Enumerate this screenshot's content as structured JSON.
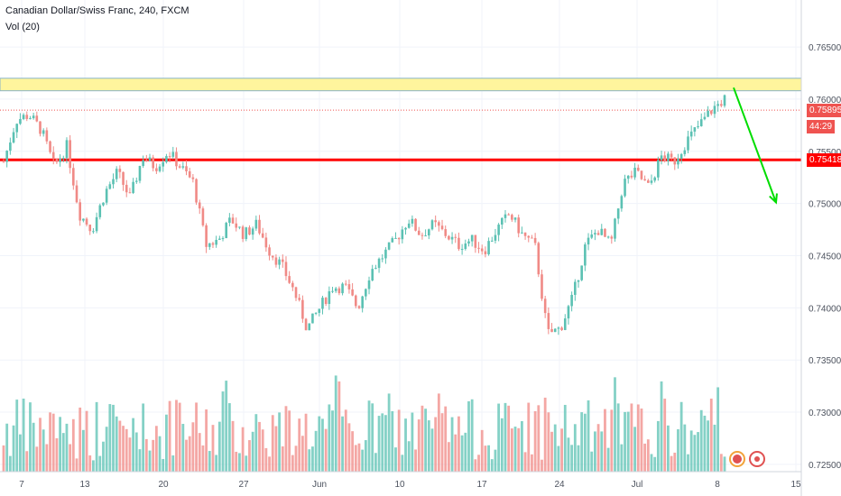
{
  "header": {
    "title": "Canadian Dollar/Swiss Franc, 240, FXCM",
    "indicator": "Vol (20)"
  },
  "badges": {
    "last_price": "0.75895",
    "countdown": "44:29",
    "support_price": "0.75418"
  },
  "colors": {
    "up": "#5bc1b3",
    "down": "#f08a86",
    "support": "#ff0000",
    "zone": "#fff59d",
    "arrow": "#00dd00",
    "last_price": "#ef5350"
  },
  "icons": {
    "toolbar": [
      "alert-icon",
      "replay-icon"
    ]
  },
  "chart_data": {
    "type": "candlestick",
    "x_tick_labels": [
      "7",
      "13",
      "20",
      "27",
      "Jun",
      "10",
      "17",
      "24",
      "Jul",
      "8",
      "15"
    ],
    "y_ticks": [
      "0.76500",
      "0.76000",
      "0.75500",
      "0.75000",
      "0.74500",
      "0.74000",
      "0.73500",
      "0.73000",
      "0.72500"
    ],
    "ylim": [
      0.7243,
      0.7695
    ],
    "resistance_zone": [
      0.7608,
      0.762
    ],
    "support_level": 0.75418,
    "last_price": 0.75895,
    "projection": {
      "from": 0.7611,
      "to": 0.7501
    },
    "price_path": [
      0.754,
      0.758,
      0.7585,
      0.757,
      0.7535,
      0.7555,
      0.749,
      0.7475,
      0.751,
      0.753,
      0.7505,
      0.7545,
      0.7535,
      0.755,
      0.7535,
      0.752,
      0.746,
      0.7465,
      0.7485,
      0.747,
      0.748,
      0.7455,
      0.744,
      0.7415,
      0.738,
      0.74,
      0.742,
      0.742,
      0.74,
      0.7435,
      0.745,
      0.7465,
      0.7485,
      0.747,
      0.748,
      0.747,
      0.746,
      0.7465,
      0.7455,
      0.7475,
      0.749,
      0.747,
      0.746,
      0.7375,
      0.738,
      0.741,
      0.746,
      0.7475,
      0.746,
      0.752,
      0.753,
      0.7515,
      0.7545,
      0.754,
      0.756,
      0.7575,
      0.759,
      0.76
    ]
  }
}
